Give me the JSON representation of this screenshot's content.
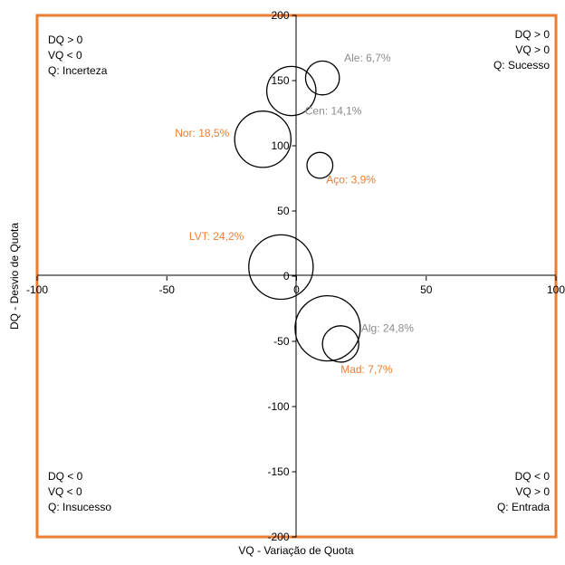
{
  "chart_data": {
    "type": "bubble",
    "xlabel": "VQ - Variação de Quota",
    "ylabel": "DQ - Desvio de Quota",
    "xlim": [
      -100,
      100
    ],
    "ylim": [
      -200,
      200
    ],
    "x_ticks": [
      -100,
      -50,
      0,
      50,
      100
    ],
    "y_ticks": [
      -200,
      -150,
      -100,
      -50,
      0,
      50,
      100,
      150,
      200
    ],
    "grid": false,
    "border_color": "#ed7d31",
    "points": [
      {
        "label": "Ale: 6,7%",
        "x": 10,
        "y": 152,
        "share": 6.7,
        "label_color": "#8c8c8c"
      },
      {
        "label": "Cen: 14,1%",
        "x": -2,
        "y": 142,
        "share": 14.1,
        "label_color": "#8c8c8c"
      },
      {
        "label": "Nor: 18,5%",
        "x": -13,
        "y": 105,
        "share": 18.5,
        "label_color": "#ed7d31"
      },
      {
        "label": "Aço: 3,9%",
        "x": 9,
        "y": 85,
        "share": 3.9,
        "label_color": "#ed7d31"
      },
      {
        "label": "LVT: 24,2%",
        "x": -6,
        "y": 7,
        "share": 24.2,
        "label_color": "#ed7d31"
      },
      {
        "label": "Alg: 24,8%",
        "x": 12,
        "y": -40,
        "share": 24.8,
        "label_color": "#8c8c8c"
      },
      {
        "label": "Mad: 7,7%",
        "x": 17,
        "y": -52,
        "share": 7.7,
        "label_color": "#ed7d31"
      }
    ]
  },
  "quadrants": {
    "top_left": [
      "DQ > 0",
      "VQ < 0",
      "Q: Incerteza"
    ],
    "top_right": [
      "DQ > 0",
      "VQ > 0",
      "Q: Sucesso"
    ],
    "bottom_left": [
      "DQ < 0",
      "VQ < 0",
      "Q: Insucesso"
    ],
    "bottom_right": [
      "DQ < 0",
      "VQ > 0",
      "Q: Entrada"
    ]
  }
}
